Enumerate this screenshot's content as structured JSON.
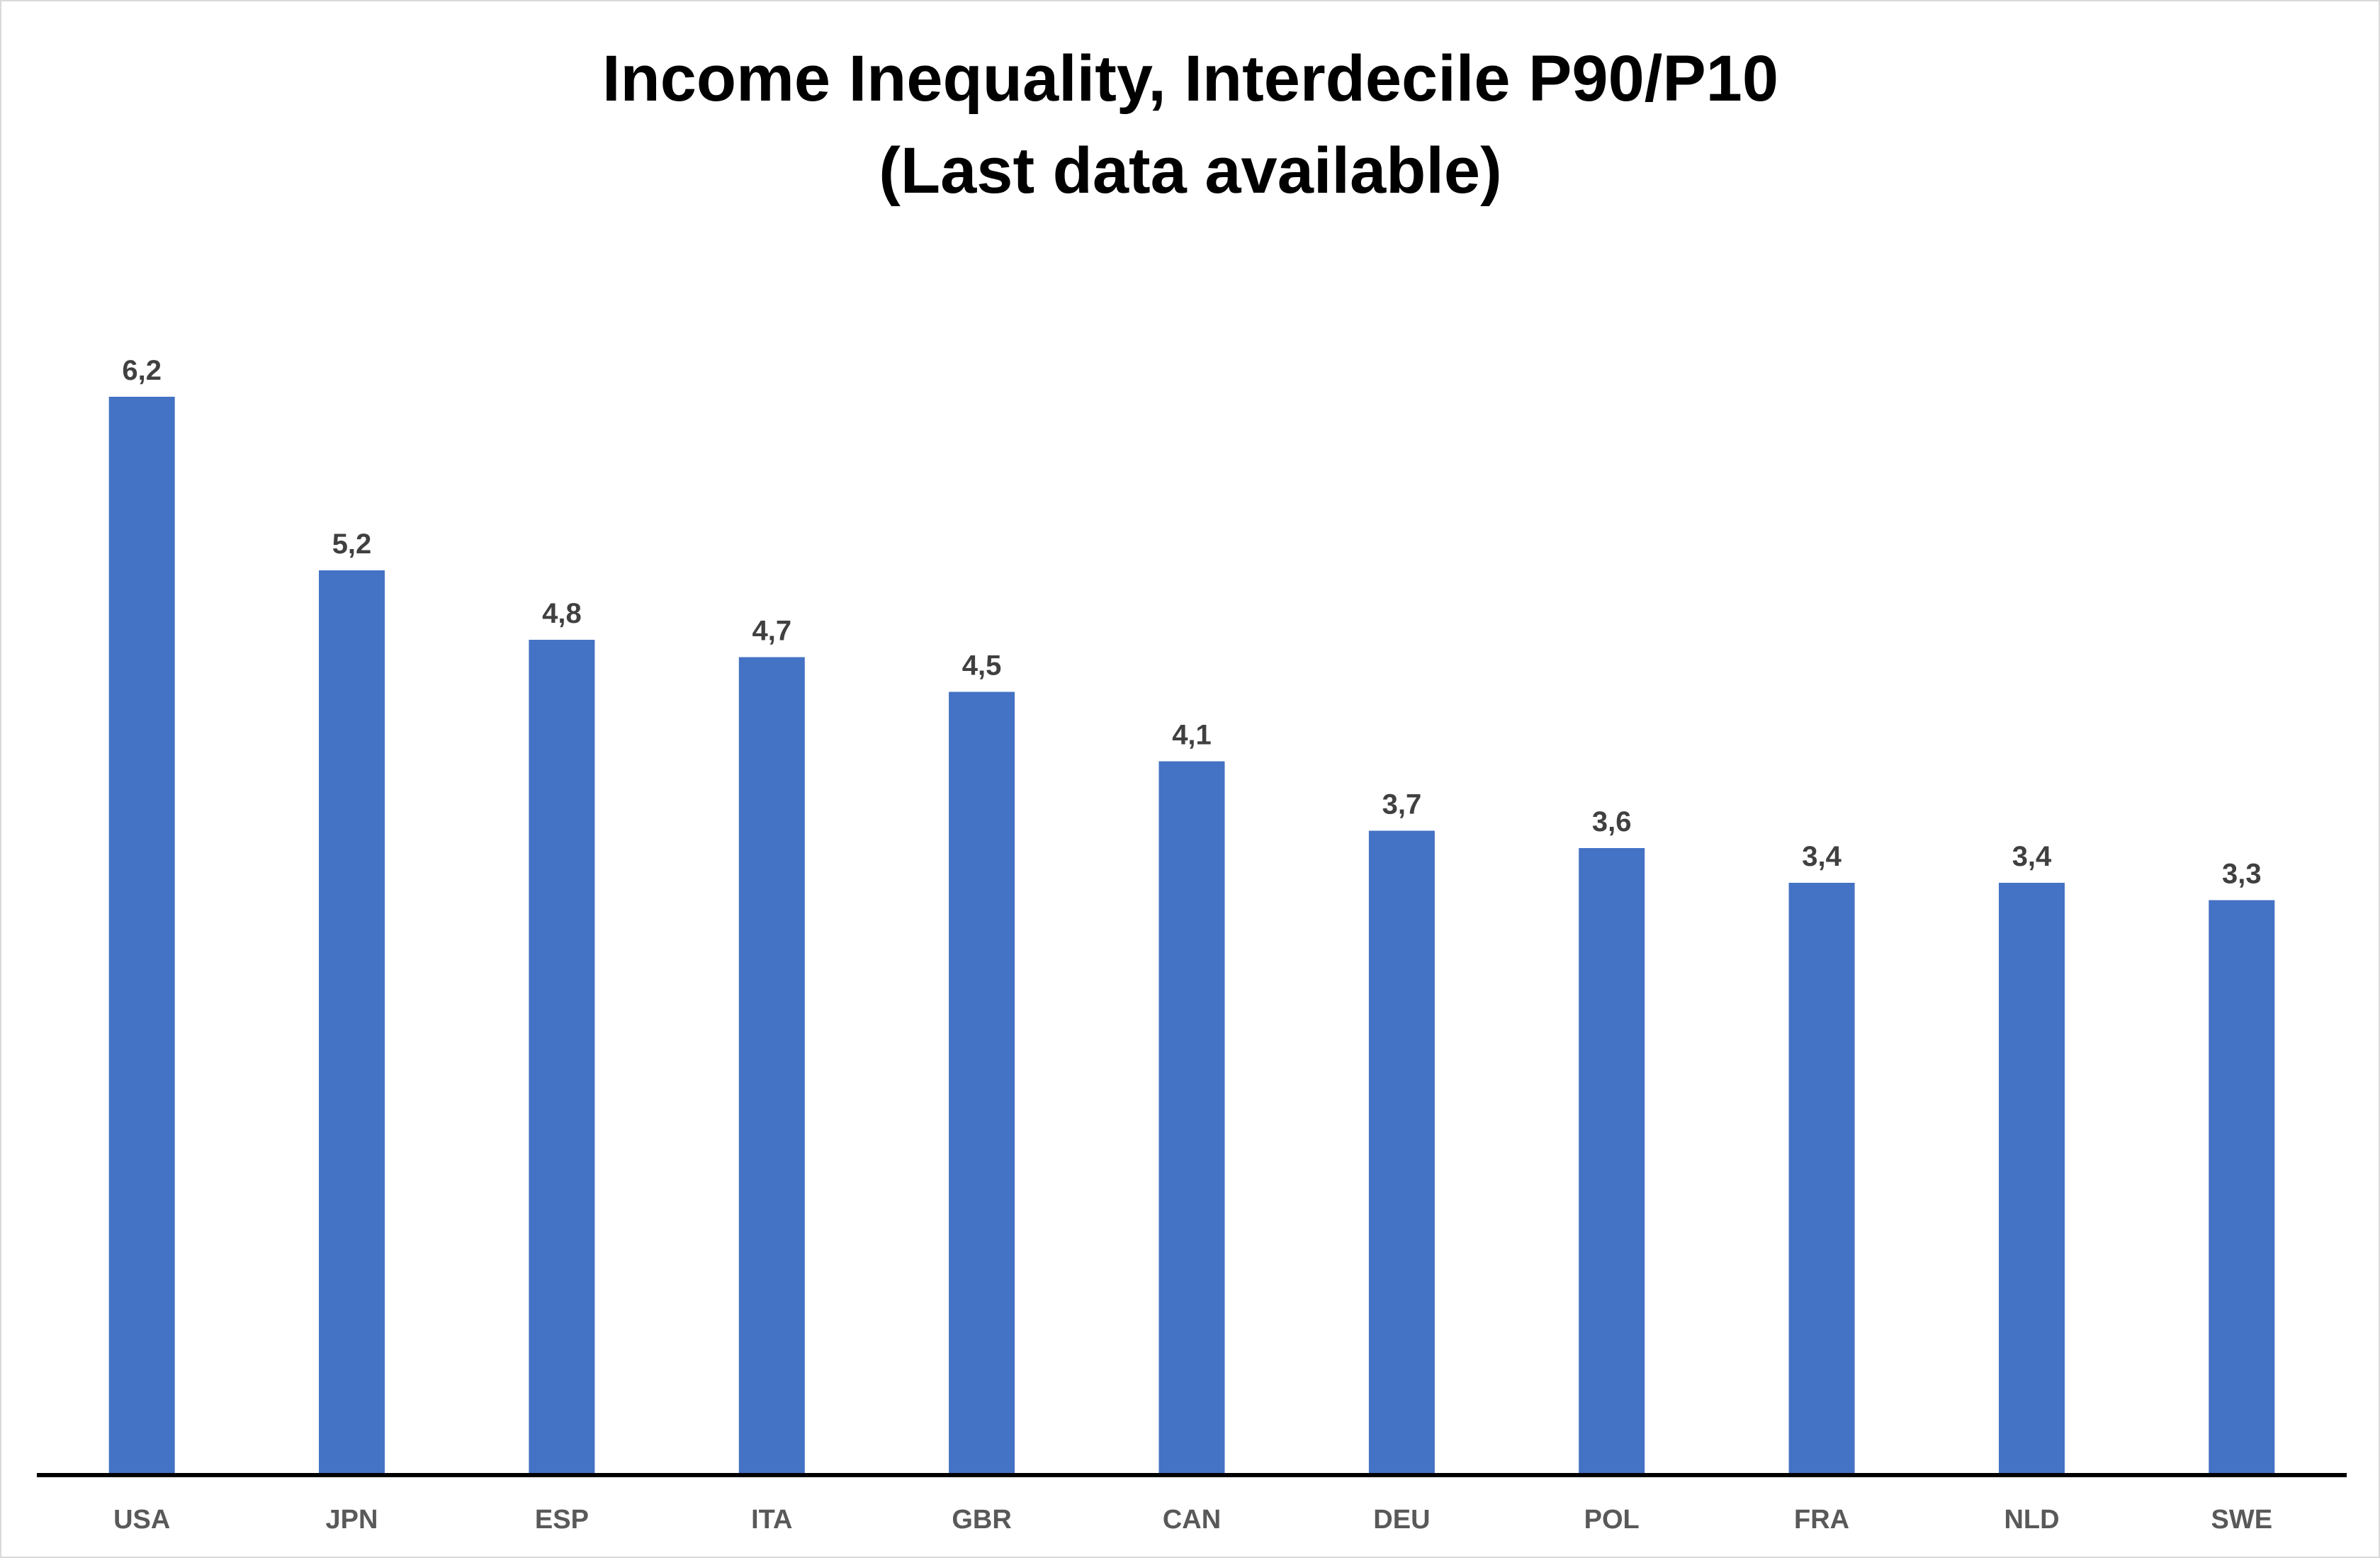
{
  "chart_data": {
    "type": "bar",
    "title": "Income Inequality, Interdecile P90/P10",
    "subtitle": "(Last data available)",
    "categories": [
      "USA",
      "JPN",
      "ESP",
      "ITA",
      "GBR",
      "CAN",
      "DEU",
      "POL",
      "FRA",
      "NLD",
      "SWE"
    ],
    "values": [
      6.2,
      5.2,
      4.8,
      4.7,
      4.5,
      4.1,
      3.7,
      3.6,
      3.4,
      3.4,
      3.3
    ],
    "data_labels": [
      "6,2",
      "5,2",
      "4,8",
      "4,7",
      "4,5",
      "4,1",
      "3,7",
      "3,6",
      "3,4",
      "3,4",
      "3,3"
    ],
    "xlabel": "",
    "ylabel": "",
    "ylim": [
      0,
      6.2
    ],
    "grid": false,
    "legend": "none",
    "colors": {
      "bar": "#4472C4",
      "axis": "#000000",
      "data_label": "#404040",
      "tick_label": "#595959",
      "title": "#000000"
    }
  }
}
